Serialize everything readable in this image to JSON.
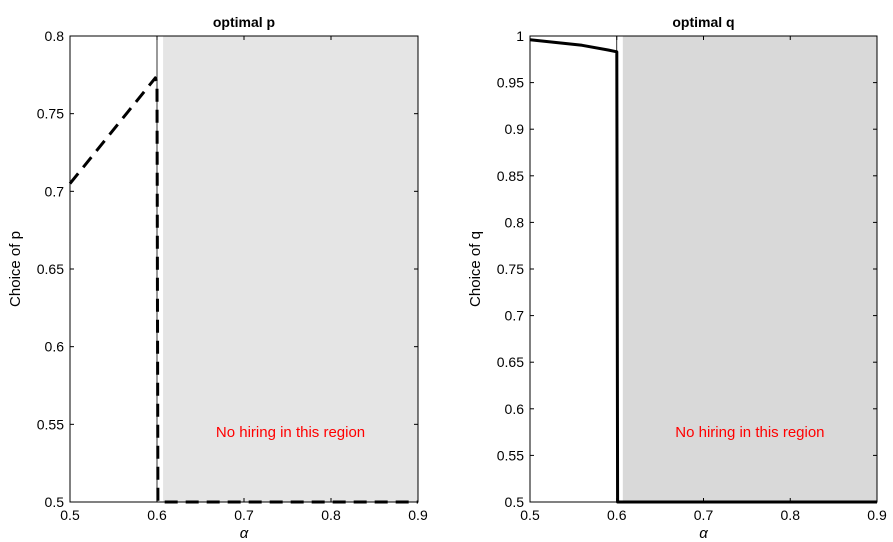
{
  "chart_data": [
    {
      "type": "line",
      "title": "optimal p",
      "xlabel": "α",
      "ylabel": "Choice of p",
      "xlim": [
        0.5,
        0.9
      ],
      "ylim": [
        0.5,
        0.8
      ],
      "xticks": [
        "0.5",
        "0.6",
        "0.7",
        "0.8",
        "0.9"
      ],
      "yticks": [
        "0.5",
        "0.55",
        "0.6",
        "0.65",
        "0.7",
        "0.75",
        "0.8"
      ],
      "shaded_region": {
        "x_from": 0.607,
        "x_to": 0.9,
        "color": "#e5e5e5"
      },
      "vertical_line": 0.6,
      "annotation": {
        "text": "No hiring in this region",
        "color": "#ff0000"
      },
      "series": [
        {
          "style": "dashed",
          "x": [
            0.5,
            0.598,
            0.6,
            0.601,
            0.9
          ],
          "y": [
            0.705,
            0.773,
            0.77,
            0.5,
            0.5
          ]
        }
      ]
    },
    {
      "type": "line",
      "title": "optimal q",
      "xlabel": "α",
      "ylabel": "Choice of q",
      "xlim": [
        0.5,
        0.9
      ],
      "ylim": [
        0.5,
        1.0
      ],
      "xticks": [
        "0.5",
        "0.6",
        "0.7",
        "0.8",
        "0.9"
      ],
      "yticks": [
        "0.5",
        "0.55",
        "0.6",
        "0.65",
        "0.7",
        "0.75",
        "0.8",
        "0.85",
        "0.9",
        "0.95",
        "1"
      ],
      "shaded_region": {
        "x_from": 0.607,
        "x_to": 0.9,
        "color": "#d9d9d9"
      },
      "vertical_line": 0.6,
      "annotation": {
        "text": "No hiring in this region",
        "color": "#ff0000"
      },
      "series": [
        {
          "style": "solid",
          "x": [
            0.5,
            0.53,
            0.56,
            0.59,
            0.6,
            0.601,
            0.9
          ],
          "y": [
            0.996,
            0.993,
            0.99,
            0.985,
            0.983,
            0.5,
            0.5
          ]
        }
      ]
    }
  ]
}
